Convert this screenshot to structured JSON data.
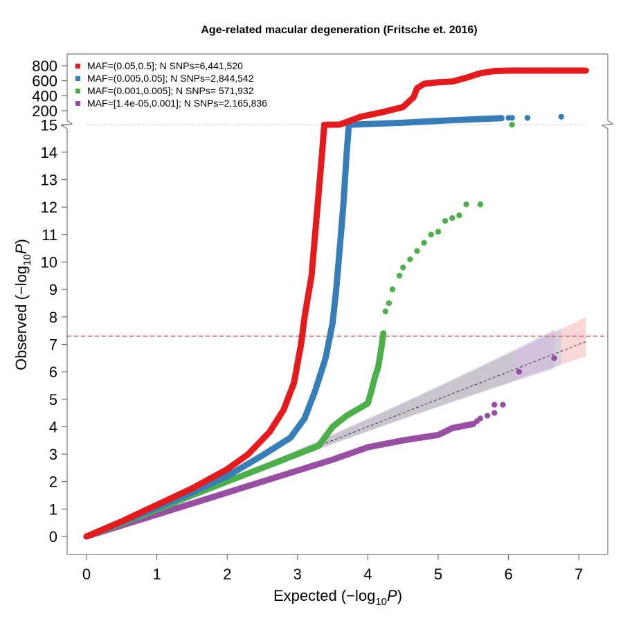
{
  "chart_data": {
    "type": "scatter",
    "title": "Age-related macular degeneration (Fritsche et. 2016)",
    "xlabel": {
      "prefix": "Expected  (−log",
      "sub": "10",
      "var": "P",
      "suffix": ")"
    },
    "ylabel": {
      "prefix": "Observed  (−log",
      "sub": "10",
      "var": "P",
      "suffix": ")"
    },
    "xlim": [
      0,
      7
    ],
    "ylim_lower": [
      0,
      15
    ],
    "ylim_upper": [
      200,
      800
    ],
    "axis_break_at": 15,
    "x_ticks": [
      "0",
      "1",
      "2",
      "3",
      "4",
      "5",
      "6",
      "7"
    ],
    "y_ticks_lower": [
      "0",
      "1",
      "2",
      "3",
      "4",
      "5",
      "6",
      "7",
      "8",
      "9",
      "10",
      "11",
      "12",
      "13",
      "14",
      "15"
    ],
    "y_ticks_upper": [
      "200",
      "400",
      "600",
      "800"
    ],
    "significance_line": {
      "y": 7.3,
      "color": "#e41a1c",
      "style": "dashed"
    },
    "reference_line": {
      "from": [
        0,
        0
      ],
      "to": [
        7.1,
        7.1
      ],
      "color": "#333333",
      "style": "dashed"
    },
    "legend_position": "top-left",
    "series": [
      {
        "name": "MAF=(0.05,0.5]; N SNPs=6,441,520",
        "color": "#e41a1c",
        "band_color": "#f4a6a6",
        "max_expected": 7.1,
        "points": [
          [
            0,
            0
          ],
          [
            0.5,
            0.55
          ],
          [
            1,
            1.15
          ],
          [
            1.5,
            1.75
          ],
          [
            2,
            2.45
          ],
          [
            2.3,
            3.0
          ],
          [
            2.6,
            3.8
          ],
          [
            2.8,
            4.6
          ],
          [
            2.95,
            5.6
          ],
          [
            3.05,
            7.0
          ],
          [
            3.1,
            8.0
          ],
          [
            3.2,
            9.5
          ],
          [
            3.25,
            11.0
          ],
          [
            3.3,
            12.5
          ],
          [
            3.35,
            14.0
          ],
          [
            3.38,
            15.0
          ],
          [
            3.6,
            15.1
          ],
          [
            3.9,
            120
          ],
          [
            4.2,
            180
          ],
          [
            4.5,
            250
          ],
          [
            4.65,
            380
          ],
          [
            4.7,
            500
          ],
          [
            4.8,
            560
          ],
          [
            5.0,
            580
          ],
          [
            5.2,
            590
          ],
          [
            5.4,
            640
          ],
          [
            5.6,
            700
          ],
          [
            5.8,
            730
          ],
          [
            6.0,
            735
          ],
          [
            6.1,
            735
          ],
          [
            6.2,
            735
          ],
          [
            6.35,
            735
          ],
          [
            6.63,
            735
          ],
          [
            7.1,
            735
          ]
        ],
        "scatter_tail": [
          [
            5.85,
            735
          ],
          [
            5.9,
            735
          ],
          [
            5.95,
            735
          ],
          [
            6.0,
            735
          ],
          [
            6.05,
            735
          ],
          [
            6.1,
            735
          ],
          [
            6.2,
            735
          ],
          [
            6.35,
            735
          ],
          [
            6.63,
            735
          ],
          [
            7.1,
            735
          ]
        ]
      },
      {
        "name": "MAF=(0.005,0.05]; N SNPs=2,844,542",
        "color": "#377eb8",
        "band_color": "#a9c7e3",
        "max_expected": 6.75,
        "points": [
          [
            0,
            0
          ],
          [
            0.5,
            0.52
          ],
          [
            1,
            1.05
          ],
          [
            1.5,
            1.6
          ],
          [
            2,
            2.2
          ],
          [
            2.5,
            2.95
          ],
          [
            2.9,
            3.6
          ],
          [
            3.1,
            4.3
          ],
          [
            3.25,
            5.3
          ],
          [
            3.4,
            6.5
          ],
          [
            3.5,
            7.8
          ],
          [
            3.55,
            9.0
          ],
          [
            3.6,
            10.5
          ],
          [
            3.65,
            12.0
          ],
          [
            3.7,
            14.0
          ],
          [
            3.73,
            15.0
          ],
          [
            4.5,
            40
          ],
          [
            5.0,
            65
          ],
          [
            5.5,
            85
          ],
          [
            5.9,
            100
          ]
        ],
        "scatter_tail": [
          [
            5.6,
            90
          ],
          [
            5.7,
            95
          ],
          [
            5.8,
            100
          ],
          [
            5.9,
            105
          ],
          [
            6.0,
            105
          ],
          [
            6.05,
            105
          ],
          [
            6.27,
            105
          ],
          [
            6.75,
            120
          ]
        ]
      },
      {
        "name": "MAF=(0.001,0.005]; N SNPs=  571,932",
        "color": "#4daf4a",
        "band_color": "#b8ddb5",
        "max_expected": 6.05,
        "points": [
          [
            0,
            0
          ],
          [
            0.5,
            0.48
          ],
          [
            1,
            0.98
          ],
          [
            1.5,
            1.5
          ],
          [
            2,
            2.0
          ],
          [
            2.5,
            2.5
          ],
          [
            3,
            3.0
          ],
          [
            3.3,
            3.3
          ],
          [
            3.5,
            4.0
          ],
          [
            3.7,
            4.4
          ],
          [
            3.9,
            4.7
          ],
          [
            4.0,
            4.85
          ],
          [
            4.05,
            5.3
          ],
          [
            4.1,
            5.8
          ],
          [
            4.15,
            6.2
          ],
          [
            4.2,
            7.0
          ],
          [
            4.22,
            7.4
          ]
        ],
        "scatter_tail": [
          [
            4.25,
            8.2
          ],
          [
            4.3,
            8.5
          ],
          [
            4.35,
            9.0
          ],
          [
            4.45,
            9.5
          ],
          [
            4.5,
            9.8
          ],
          [
            4.6,
            10.1
          ],
          [
            4.7,
            10.4
          ],
          [
            4.8,
            10.7
          ],
          [
            4.9,
            11.0
          ],
          [
            5.0,
            11.1
          ],
          [
            5.1,
            11.5
          ],
          [
            5.2,
            11.6
          ],
          [
            5.3,
            11.7
          ],
          [
            5.4,
            12.1
          ],
          [
            5.6,
            12.1
          ],
          [
            6.05,
            15.0
          ]
        ]
      },
      {
        "name": "MAF=[1.4e-05,0.001]; N SNPs=2,165,836",
        "color": "#984ea3",
        "band_color": "#cdb0d6",
        "max_expected": 6.65,
        "points": [
          [
            0,
            0
          ],
          [
            0.5,
            0.4
          ],
          [
            1,
            0.8
          ],
          [
            1.5,
            1.2
          ],
          [
            2,
            1.6
          ],
          [
            2.5,
            2.0
          ],
          [
            3,
            2.4
          ],
          [
            3.5,
            2.8
          ],
          [
            4,
            3.25
          ],
          [
            4.5,
            3.5
          ],
          [
            5,
            3.7
          ],
          [
            5.2,
            3.95
          ],
          [
            5.5,
            4.1
          ]
        ],
        "scatter_tail": [
          [
            5.55,
            4.2
          ],
          [
            5.6,
            4.3
          ],
          [
            5.7,
            4.4
          ],
          [
            5.8,
            4.5
          ],
          [
            5.92,
            4.8
          ],
          [
            5.8,
            4.8
          ],
          [
            6.15,
            6.0
          ],
          [
            6.65,
            6.5
          ]
        ]
      }
    ]
  }
}
